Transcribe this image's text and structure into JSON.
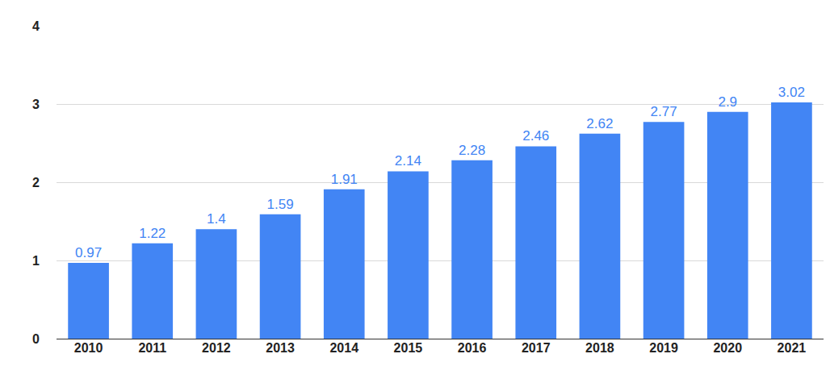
{
  "chart_data": {
    "type": "bar",
    "categories": [
      "2010",
      "2011",
      "2012",
      "2013",
      "2014",
      "2015",
      "2016",
      "2017",
      "2018",
      "2019",
      "2020",
      "2021"
    ],
    "values": [
      0.97,
      1.22,
      1.4,
      1.59,
      1.91,
      2.14,
      2.28,
      2.46,
      2.62,
      2.77,
      2.9,
      3.02
    ],
    "color": "#4285f4",
    "ylim": [
      0,
      4
    ],
    "yticks": [
      0,
      1,
      2,
      3,
      4
    ],
    "grid": true,
    "data_labels": true
  }
}
